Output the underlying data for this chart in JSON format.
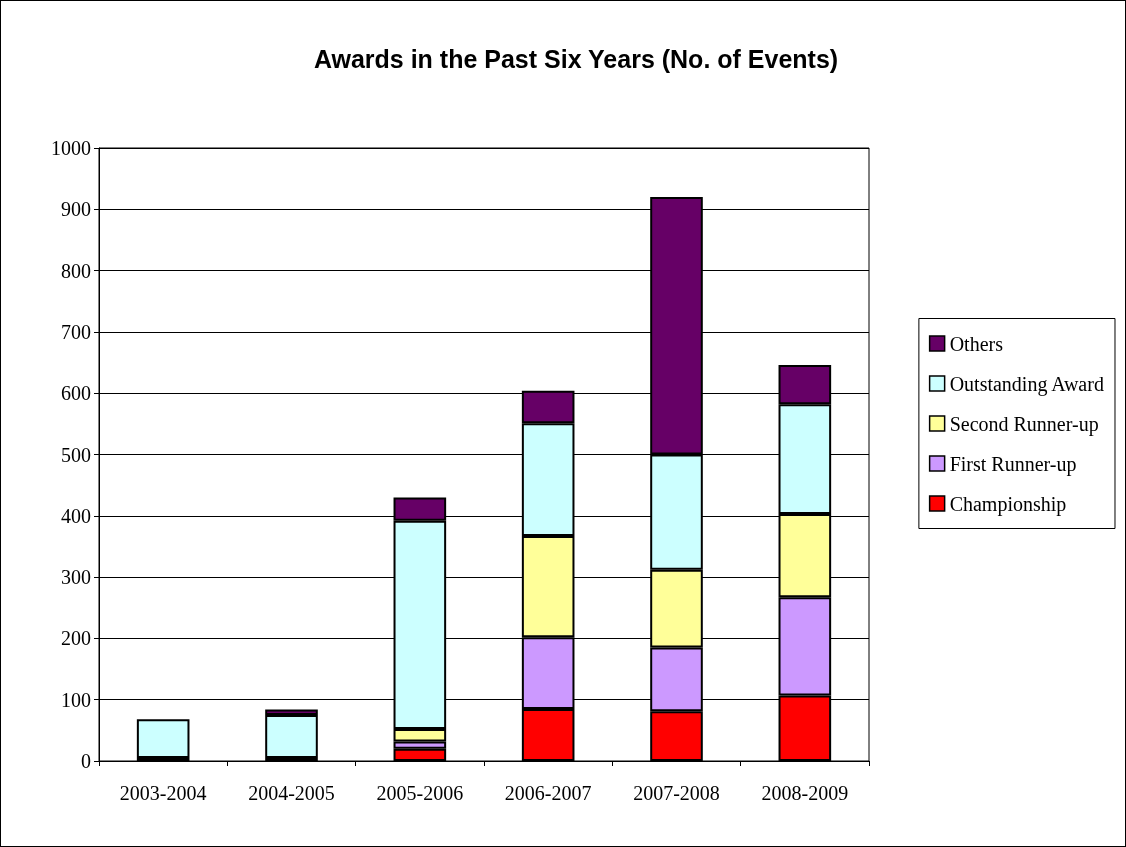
{
  "chart_data": {
    "type": "bar",
    "title": "Awards in the Past Six Years (No. of Events)",
    "stacked": true,
    "legend": "right",
    "grid": "y",
    "categories": [
      "2003-2004",
      "2004-2005",
      "2005-2006",
      "2006-2007",
      "2007-2008",
      "2008-2009"
    ],
    "ylim": [
      0,
      1000
    ],
    "yticks": [
      0,
      100,
      200,
      300,
      400,
      500,
      600,
      700,
      800,
      900,
      1000
    ],
    "series": [
      {
        "name": "Championship",
        "color": "#ff0000",
        "values": [
          5,
          5,
          20,
          85,
          81,
          107
        ]
      },
      {
        "name": "First Runner-up",
        "color": "#cc99ff",
        "values": [
          0,
          0,
          12,
          117,
          104,
          160
        ]
      },
      {
        "name": "Second Runner-up",
        "color": "#ffff99",
        "values": [
          0,
          0,
          20,
          165,
          127,
          136
        ]
      },
      {
        "name": "Outstanding Award",
        "color": "#ccffff",
        "values": [
          63,
          70,
          340,
          184,
          188,
          179
        ]
      },
      {
        "name": "Others",
        "color": "#660066",
        "values": [
          0,
          9,
          38,
          53,
          420,
          64
        ]
      }
    ]
  }
}
